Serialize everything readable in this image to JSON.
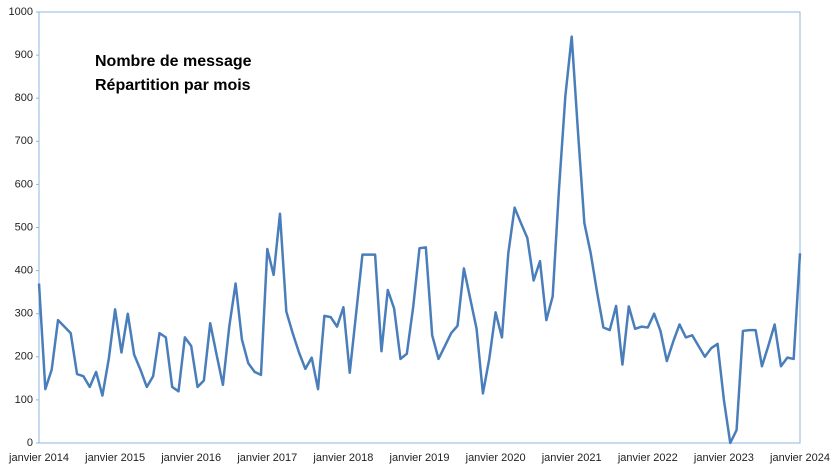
{
  "chart_data": {
    "type": "line",
    "title": "Nombre de message",
    "subtitle": "Répartition par mois",
    "categories": [
      "janvier 2014",
      null,
      null,
      null,
      null,
      null,
      null,
      null,
      null,
      null,
      null,
      null,
      "janvier 2015",
      null,
      null,
      null,
      null,
      null,
      null,
      null,
      null,
      null,
      null,
      null,
      "janvier 2016",
      null,
      null,
      null,
      null,
      null,
      null,
      null,
      null,
      null,
      null,
      null,
      "janvier 2017",
      null,
      null,
      null,
      null,
      null,
      null,
      null,
      null,
      null,
      null,
      null,
      "janvier 2018",
      null,
      null,
      null,
      null,
      null,
      null,
      null,
      null,
      null,
      null,
      null,
      "janvier 2019",
      null,
      null,
      null,
      null,
      null,
      null,
      null,
      null,
      null,
      null,
      null,
      "janvier 2020",
      null,
      null,
      null,
      null,
      null,
      null,
      null,
      null,
      null,
      null,
      null,
      "janvier 2021",
      null,
      null,
      null,
      null,
      null,
      null,
      null,
      null,
      null,
      null,
      null,
      "janvier 2022",
      null,
      null,
      null,
      null,
      null,
      null,
      null,
      null,
      null,
      null,
      null,
      "janvier 2023",
      null,
      null,
      null,
      null,
      null,
      null,
      null,
      null,
      null,
      null,
      null,
      "janvier 2024"
    ],
    "values": [
      370,
      125,
      170,
      285,
      270,
      255,
      160,
      155,
      130,
      165,
      110,
      195,
      310,
      210,
      300,
      205,
      170,
      130,
      155,
      255,
      245,
      130,
      120,
      245,
      225,
      130,
      145,
      278,
      205,
      135,
      270,
      370,
      240,
      185,
      165,
      158,
      450,
      390,
      532,
      305,
      255,
      210,
      172,
      198,
      125,
      295,
      292,
      270,
      315,
      163,
      300,
      437,
      437,
      437,
      213,
      355,
      312,
      195,
      207,
      315,
      452,
      454,
      250,
      195,
      225,
      255,
      272,
      405,
      335,
      265,
      115,
      195,
      303,
      245,
      440,
      546,
      510,
      476,
      377,
      422,
      285,
      340,
      590,
      805,
      943,
      720,
      510,
      440,
      350,
      268,
      262,
      318,
      182,
      317,
      265,
      270,
      268,
      300,
      260,
      190,
      235,
      275,
      245,
      250,
      225,
      200,
      220,
      230,
      100,
      0,
      30,
      260,
      262,
      262,
      178,
      225,
      275,
      178,
      198,
      195,
      440
    ],
    "color": "#4a7ebb",
    "ylim": [
      0,
      1000
    ],
    "yticks": [
      0,
      100,
      200,
      300,
      400,
      500,
      600,
      700,
      800,
      900,
      1000
    ]
  }
}
